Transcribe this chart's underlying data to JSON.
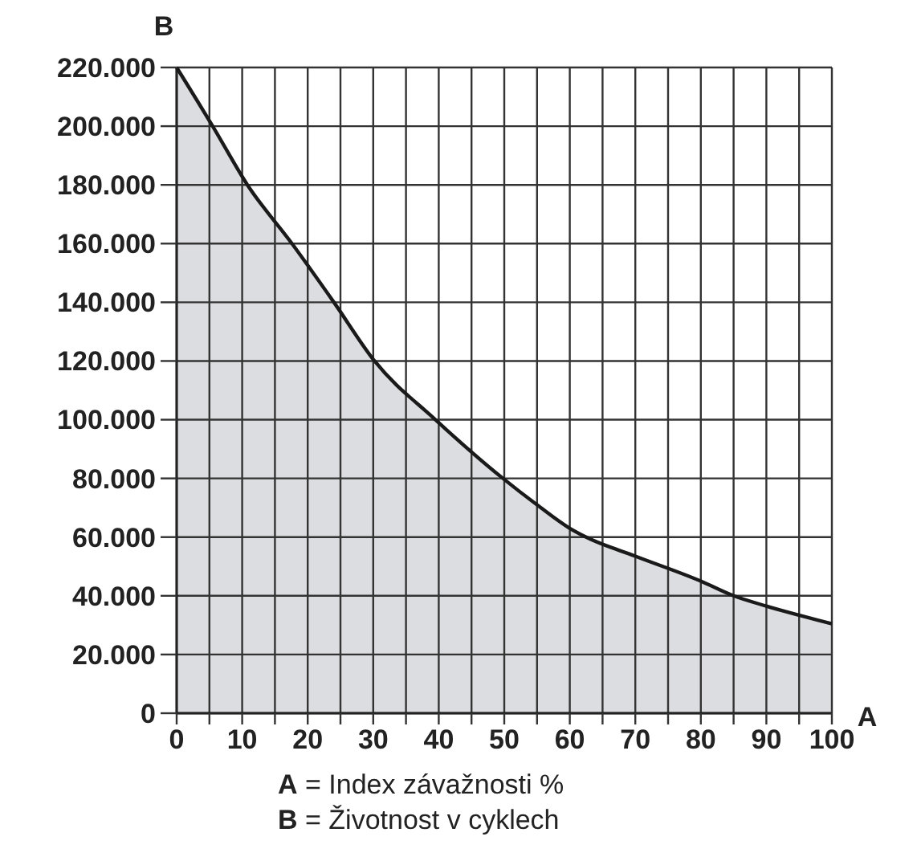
{
  "chart_data": {
    "type": "area",
    "xlabel": "A",
    "ylabel": "B",
    "annotations": [
      "A = Index závažnosti %",
      "B = Životnost v cyklech"
    ],
    "series": [
      {
        "color": "#dcdde0",
        "x": [
          0,
          5.5,
          10.8,
          17.6,
          24,
          30.2,
          39.5,
          49.8,
          55,
          60,
          62.5,
          70,
          80,
          85,
          90,
          100
        ],
        "values": [
          220000,
          200000,
          180000,
          160000,
          140000,
          120000,
          100000,
          80000,
          71000,
          63000,
          60000,
          53500,
          45000,
          40000,
          36500,
          30500
        ]
      }
    ],
    "xlim": [
      0,
      100
    ],
    "xticks": [
      0,
      {
        "value": 5,
        "label": null
      },
      10,
      {
        "value": 15,
        "label": null
      },
      20,
      {
        "value": 25,
        "label": null
      },
      30,
      {
        "value": 35,
        "label": null
      },
      40,
      {
        "value": 45,
        "label": null
      },
      50,
      {
        "value": 55,
        "label": null
      },
      60,
      {
        "value": 65,
        "label": null
      },
      70,
      {
        "value": 75,
        "label": null
      },
      80,
      {
        "value": 85,
        "label": null
      },
      90,
      {
        "value": 95,
        "label": null
      },
      100
    ],
    "ylim": [
      0,
      220000
    ],
    "yticks": [
      0,
      {
        "value": 20000,
        "label": "20.000"
      },
      {
        "value": 40000,
        "label": "40.000"
      },
      {
        "value": 60000,
        "label": "60.000"
      },
      {
        "value": 80000,
        "label": "80.000"
      },
      {
        "value": 100000,
        "label": "100.000"
      },
      {
        "value": 120000,
        "label": "120.000"
      },
      {
        "value": 140000,
        "label": "140.000"
      },
      {
        "value": 160000,
        "label": "160.000"
      },
      {
        "value": 180000,
        "label": "180.000"
      },
      {
        "value": 200000,
        "label": "200.000"
      },
      {
        "value": 220000,
        "label": "220.000"
      }
    ],
    "grid": true
  }
}
